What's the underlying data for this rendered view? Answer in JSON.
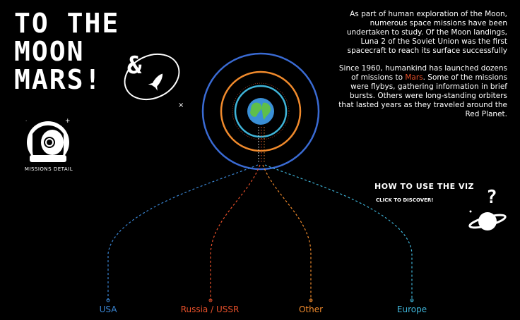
{
  "title": {
    "line1": "TO THE",
    "line2": "MOON",
    "line3": "MARS!"
  },
  "missions_detail": {
    "label": "MISSIONS DETAIL"
  },
  "intro": {
    "p1": "As part of human exploration of the Moon, numerous space missions have been undertaken to study. Of the Moon landings, Luna 2 of the Soviet Union was the first spacecraft to reach its surface successfully",
    "p2_before": "Since 1960, humankind has launched dozens of missions to ",
    "p2_highlight": "Mars",
    "p2_after": ". Some of the missions were flybys, gathering information in brief bursts. Others were long-standing orbiters that lasted years as they traveled around the Red Planet."
  },
  "howto": {
    "title": "HOW TO USE THE VIZ",
    "subtitle": "CLICK TO DISCOVER!"
  },
  "regions": [
    {
      "label": "USA",
      "color": "#3a86d4"
    },
    {
      "label": "Russia / USSR",
      "color": "#e8502a"
    },
    {
      "label": "Other",
      "color": "#f08a2c"
    },
    {
      "label": "Europe",
      "color": "#3fb4d8"
    }
  ],
  "orbit_colors": [
    "#3a6bd4",
    "#e8502a",
    "#f08a2c",
    "#3fb4d8"
  ]
}
